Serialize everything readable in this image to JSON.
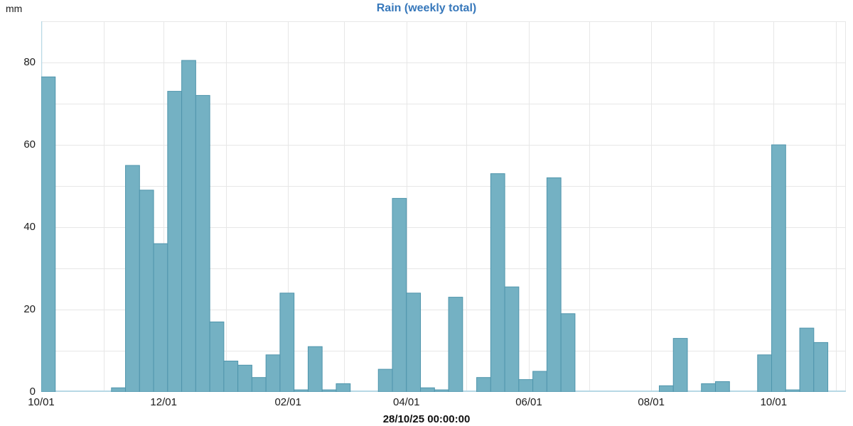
{
  "chart_data": {
    "type": "bar",
    "title": "Rain (weekly total)",
    "unit_label": "mm",
    "footer_timestamp": "28/10/25 00:00:00",
    "xlabel": "",
    "ylabel": "mm",
    "ylim": [
      0,
      90
    ],
    "y_ticks": [
      0,
      20,
      40,
      60,
      80
    ],
    "y_minor_grid_step": 10,
    "grid": "horizontal every 10 mm, vertical monthly",
    "legend_position": "none",
    "x_ticks": [
      {
        "label": "10/01",
        "day": 0
      },
      {
        "label": "12/01",
        "day": 61
      },
      {
        "label": "02/01",
        "day": 123
      },
      {
        "label": "04/01",
        "day": 182
      },
      {
        "label": "06/01",
        "day": 243
      },
      {
        "label": "08/01",
        "day": 304
      },
      {
        "label": "10/01",
        "day": 365
      }
    ],
    "month_grid_days": [
      31,
      61,
      92,
      123,
      151,
      182,
      212,
      243,
      273,
      304,
      335,
      365,
      396
    ],
    "total_days": 401,
    "bar_span_days": 7,
    "weekly_totals_mm": [
      76.5,
      0,
      0,
      0,
      0,
      1,
      55,
      49,
      36,
      73,
      80.5,
      72,
      17,
      7.5,
      6.5,
      3.5,
      9,
      24,
      0.5,
      11,
      0.5,
      2,
      0,
      0,
      5.5,
      47,
      24,
      1,
      0.5,
      23,
      0,
      3.5,
      53,
      25.5,
      3,
      5,
      52,
      19,
      0,
      0,
      0,
      0,
      0,
      0,
      1.5,
      13,
      0,
      2,
      2.5,
      0,
      0,
      9,
      60,
      0.5,
      15.5,
      12
    ],
    "colors": {
      "bar_fill": "#74b1c3",
      "bar_stroke": "#4f95ac",
      "grid": "#e7e7e7",
      "axis_line": "#b7d8e5",
      "title": "#3778bb",
      "tick_text": "#1b1b1b",
      "footer_text": "#111111"
    }
  }
}
